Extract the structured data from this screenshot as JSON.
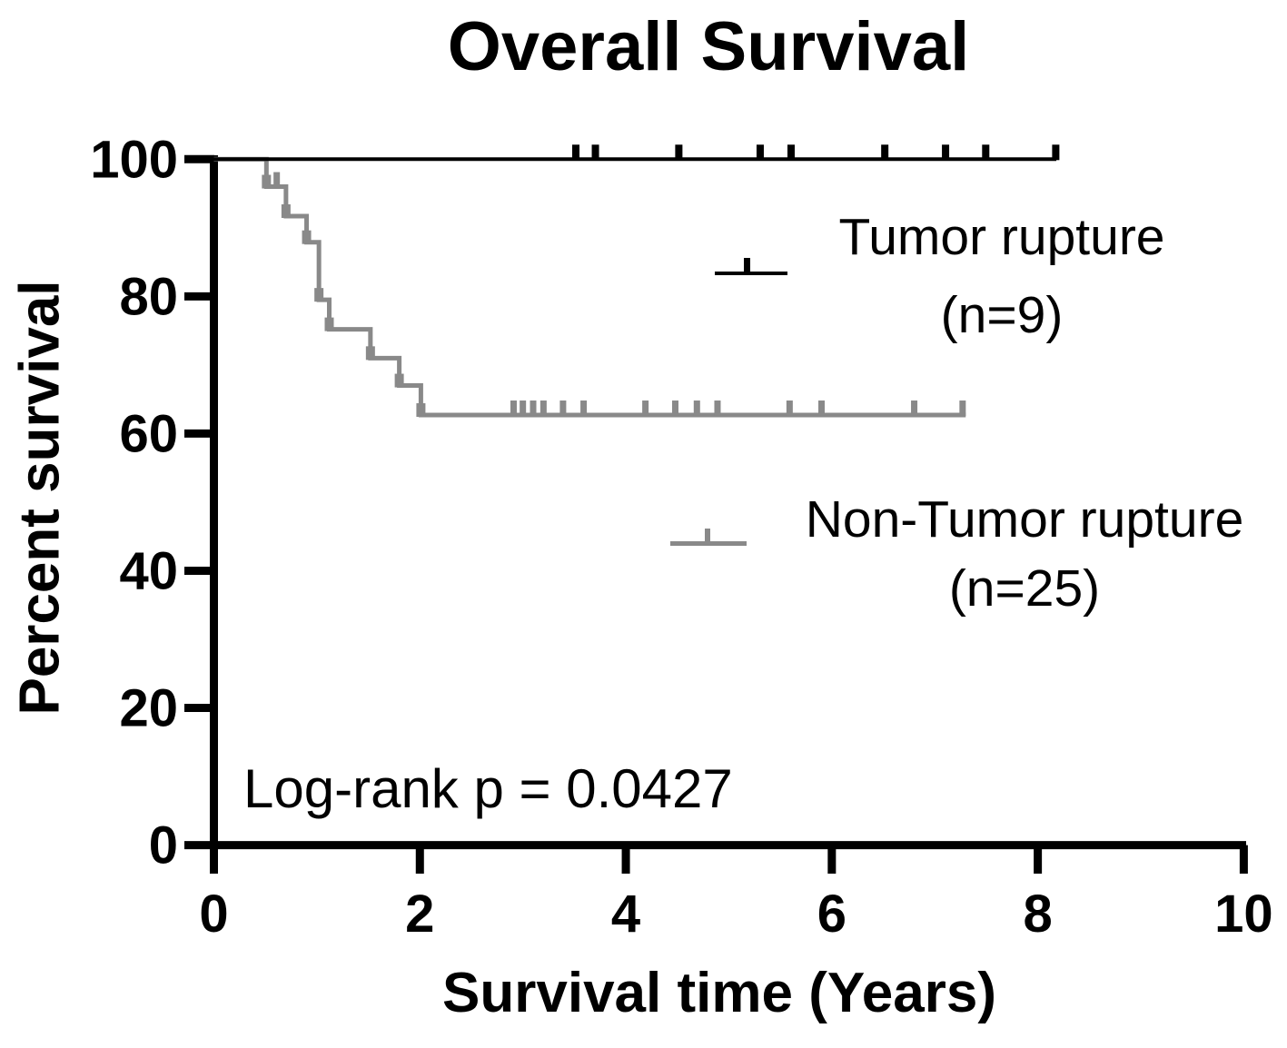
{
  "title": "Overall Survival",
  "p_value_text": "Log-rank p = 0.0427",
  "axes": {
    "x": {
      "label": "Survival time (Years)",
      "ticks": [
        0,
        2,
        4,
        6,
        8,
        10
      ],
      "range": [
        0,
        10
      ]
    },
    "y": {
      "label": "Percent survival",
      "ticks": [
        0,
        20,
        40,
        60,
        80,
        100
      ],
      "range": [
        0,
        100
      ]
    }
  },
  "colors": {
    "tumor_rupture": "#000000",
    "non_tumor_rupture": "#898989",
    "axis": "#000000"
  },
  "chart_data": {
    "type": "line",
    "subtype": "kaplan_meier_step",
    "title": "Overall Survival",
    "xlabel": "Survival time (Years)",
    "ylabel": "Percent survival",
    "xlim": [
      0,
      10
    ],
    "ylim": [
      0,
      100
    ],
    "grid": false,
    "legend_position": "right-inside",
    "annotation": "Log-rank p = 0.0427",
    "series": [
      {
        "name": "Tumor rupture",
        "label_line1": "Tumor rupture",
        "label_line2": "(n=9)",
        "n": 9,
        "color": "#000000",
        "step_points": [
          [
            0,
            100
          ],
          [
            8.18,
            100
          ]
        ],
        "death_marks": [],
        "censor_marks": [
          [
            3.51,
            100
          ],
          [
            3.7,
            100
          ],
          [
            4.51,
            100
          ],
          [
            5.3,
            100
          ],
          [
            5.6,
            100
          ],
          [
            6.51,
            100
          ],
          [
            7.1,
            100
          ],
          [
            7.49,
            100
          ],
          [
            8.17,
            100
          ]
        ]
      },
      {
        "name": "Non-Tumor rupture",
        "label_line1": "Non-Tumor rupture",
        "label_line2": "(n=25)",
        "n": 25,
        "color": "#898989",
        "step_points": [
          [
            0,
            100
          ],
          [
            0.51,
            100
          ],
          [
            0.51,
            96
          ],
          [
            0.7,
            96
          ],
          [
            0.7,
            91.7
          ],
          [
            0.9,
            91.7
          ],
          [
            0.9,
            87.9
          ],
          [
            1.02,
            87.9
          ],
          [
            1.02,
            79.5
          ],
          [
            1.12,
            79.5
          ],
          [
            1.12,
            75.2
          ],
          [
            1.52,
            75.2
          ],
          [
            1.52,
            71.0
          ],
          [
            1.8,
            71.0
          ],
          [
            1.8,
            67.0
          ],
          [
            2.01,
            67.0
          ],
          [
            2.01,
            62.7
          ],
          [
            7.3,
            62.7
          ]
        ],
        "death_marks": [
          [
            0.51,
            96
          ],
          [
            0.7,
            91.7
          ],
          [
            0.9,
            87.9
          ],
          [
            1.02,
            79.5
          ],
          [
            1.12,
            75.2
          ],
          [
            1.52,
            71.0
          ],
          [
            1.8,
            67.0
          ],
          [
            2.01,
            62.7
          ]
        ],
        "censor_marks": [
          [
            0.61,
            96
          ],
          [
            2.91,
            62.7
          ],
          [
            3.0,
            62.7
          ],
          [
            3.1,
            62.7
          ],
          [
            3.2,
            62.7
          ],
          [
            3.39,
            62.7
          ],
          [
            3.59,
            62.7
          ],
          [
            4.19,
            62.7
          ],
          [
            4.48,
            62.7
          ],
          [
            4.69,
            62.7
          ],
          [
            4.89,
            62.7
          ],
          [
            5.59,
            62.7
          ],
          [
            5.9,
            62.7
          ],
          [
            6.8,
            62.7
          ],
          [
            7.27,
            62.7
          ]
        ]
      }
    ]
  }
}
